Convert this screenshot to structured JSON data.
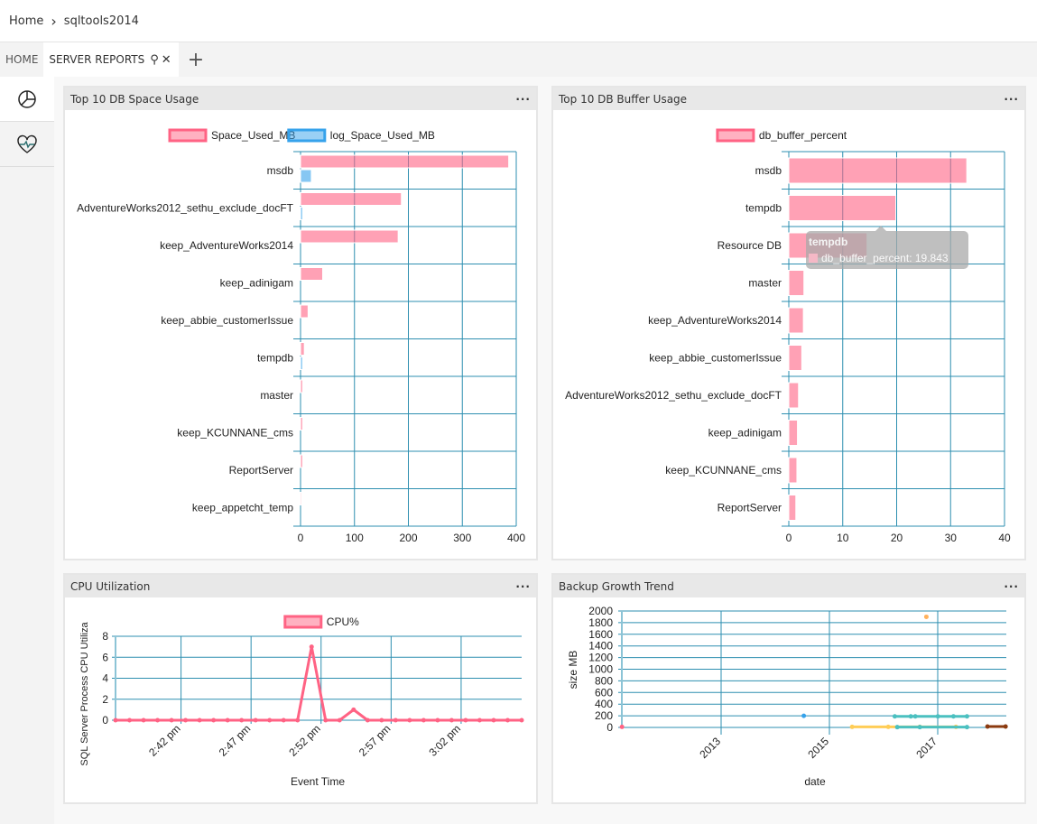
{
  "breadcrumb": {
    "home": "Home",
    "server": "sqltools2014"
  },
  "tabs": [
    {
      "label": "HOME"
    },
    {
      "label": "SERVER REPORTS"
    }
  ],
  "sidebar": {
    "items": [
      {
        "icon": "pie-chart-icon"
      },
      {
        "icon": "heart-pulse-icon"
      }
    ]
  },
  "panels": {
    "space": {
      "title": "Top 10 DB Space Usage",
      "more": "···"
    },
    "buffer": {
      "title": "Top 10 DB Buffer Usage",
      "more": "···"
    },
    "cpu": {
      "title": "CPU Utilization",
      "more": "···"
    },
    "backup": {
      "title": "Backup Growth Trend",
      "more": "···"
    }
  },
  "tooltip": {
    "title": "tempdb",
    "text": "db_buffer_percent: 19.843"
  },
  "chart_data": [
    {
      "type": "bar",
      "orientation": "horizontal",
      "grid": true,
      "legend": "top",
      "categories": [
        "msdb",
        "AdventureWorks2012_sethu_exclude_docFT",
        "keep_AdventureWorks2014",
        "keep_adinigam",
        "keep_abbie_customerIssue",
        "tempdb",
        "master",
        "keep_KCUNNANE_cms",
        "ReportServer",
        "keep_appetcht_temp"
      ],
      "series": [
        {
          "name": "Space_Used_MB",
          "color": "#ff6384",
          "values": [
            386,
            187,
            181,
            41,
            14,
            7,
            4,
            4,
            4,
            2
          ]
        },
        {
          "name": "log_Space_Used_MB",
          "color": "#36a2eb",
          "values": [
            20,
            4,
            0,
            0,
            0,
            4,
            0,
            0,
            0,
            0
          ]
        }
      ],
      "xlim": [
        0,
        400
      ],
      "xticks": [
        0,
        100,
        200,
        300,
        400
      ]
    },
    {
      "type": "bar",
      "orientation": "horizontal",
      "grid": true,
      "legend": "top",
      "categories": [
        "msdb",
        "tempdb",
        "Resource DB",
        "master",
        "keep_AdventureWorks2014",
        "keep_abbie_customerIssue",
        "AdventureWorks2012_sethu_exclude_docFT",
        "keep_adinigam",
        "keep_KCUNNANE_cms",
        "ReportServer"
      ],
      "series": [
        {
          "name": "db_buffer_percent",
          "color": "#ff6384",
          "values": [
            33,
            19.843,
            14.5,
            2.8,
            2.7,
            2.4,
            1.8,
            1.6,
            1.5,
            1.3
          ]
        }
      ],
      "xlim": [
        0,
        40
      ],
      "xticks": [
        0,
        10,
        20,
        30,
        40
      ]
    },
    {
      "type": "line",
      "grid": true,
      "legend": "top",
      "xlabel": "Event Time",
      "ylabel": "SQL Server Process CPU Utiliza",
      "x_start": "2:37 pm",
      "x_step_minutes": 1,
      "series": [
        {
          "name": "CPU%",
          "color": "#ff6384",
          "values": [
            0,
            0,
            0,
            0,
            0,
            0,
            0,
            0,
            0,
            0,
            0,
            0,
            0,
            0,
            7,
            0,
            0,
            1,
            0,
            0,
            0,
            0,
            0,
            0,
            0,
            0,
            0,
            0,
            0,
            0
          ]
        }
      ],
      "ylim": [
        0,
        8
      ],
      "yticks": [
        0,
        2,
        4,
        6,
        8
      ],
      "xticks": [
        "2:42 pm",
        "2:47 pm",
        "2:52 pm",
        "2:57 pm",
        "3:02 pm"
      ]
    },
    {
      "type": "line",
      "grid": true,
      "xlabel": "date",
      "ylabel": "size MB",
      "ylim": [
        0,
        2000
      ],
      "yticks": [
        0,
        200,
        400,
        600,
        800,
        1000,
        1200,
        1400,
        1600,
        1800,
        2000
      ],
      "xticks": [
        "2013",
        "2015",
        "2017"
      ],
      "series": [
        {
          "color": "#ff6384",
          "points": [
            [
              "2011-03-01",
              10
            ]
          ]
        },
        {
          "color": "#36a2eb",
          "points": [
            [
              "2014-07-10",
              200
            ]
          ]
        },
        {
          "color": "#ffb15c",
          "points": [
            [
              "2016-10-15",
              1900
            ]
          ]
        },
        {
          "color": "#4bc0c0",
          "points": [
            [
              "2016-03-15",
              190
            ],
            [
              "2016-07-01",
              190
            ],
            [
              "2016-08-01",
              190
            ],
            [
              "2017-01-01",
              190
            ],
            [
              "2017-04-15",
              190
            ],
            [
              "2017-07-15",
              190
            ]
          ]
        },
        {
          "color": "#ffcd56",
          "points": [
            [
              "2015-06-01",
              10
            ],
            [
              "2016-02-01",
              10
            ],
            [
              "2016-09-01",
              10
            ],
            [
              "2017-05-01",
              10
            ]
          ]
        },
        {
          "color": "#4bc0c0",
          "points": [
            [
              "2016-04-01",
              5
            ],
            [
              "2016-09-01",
              5
            ],
            [
              "2017-07-15",
              5
            ]
          ]
        },
        {
          "color": "#8b3a0f",
          "points": [
            [
              "2017-12-01",
              15
            ],
            [
              "2018-04-01",
              15
            ]
          ]
        }
      ]
    }
  ]
}
